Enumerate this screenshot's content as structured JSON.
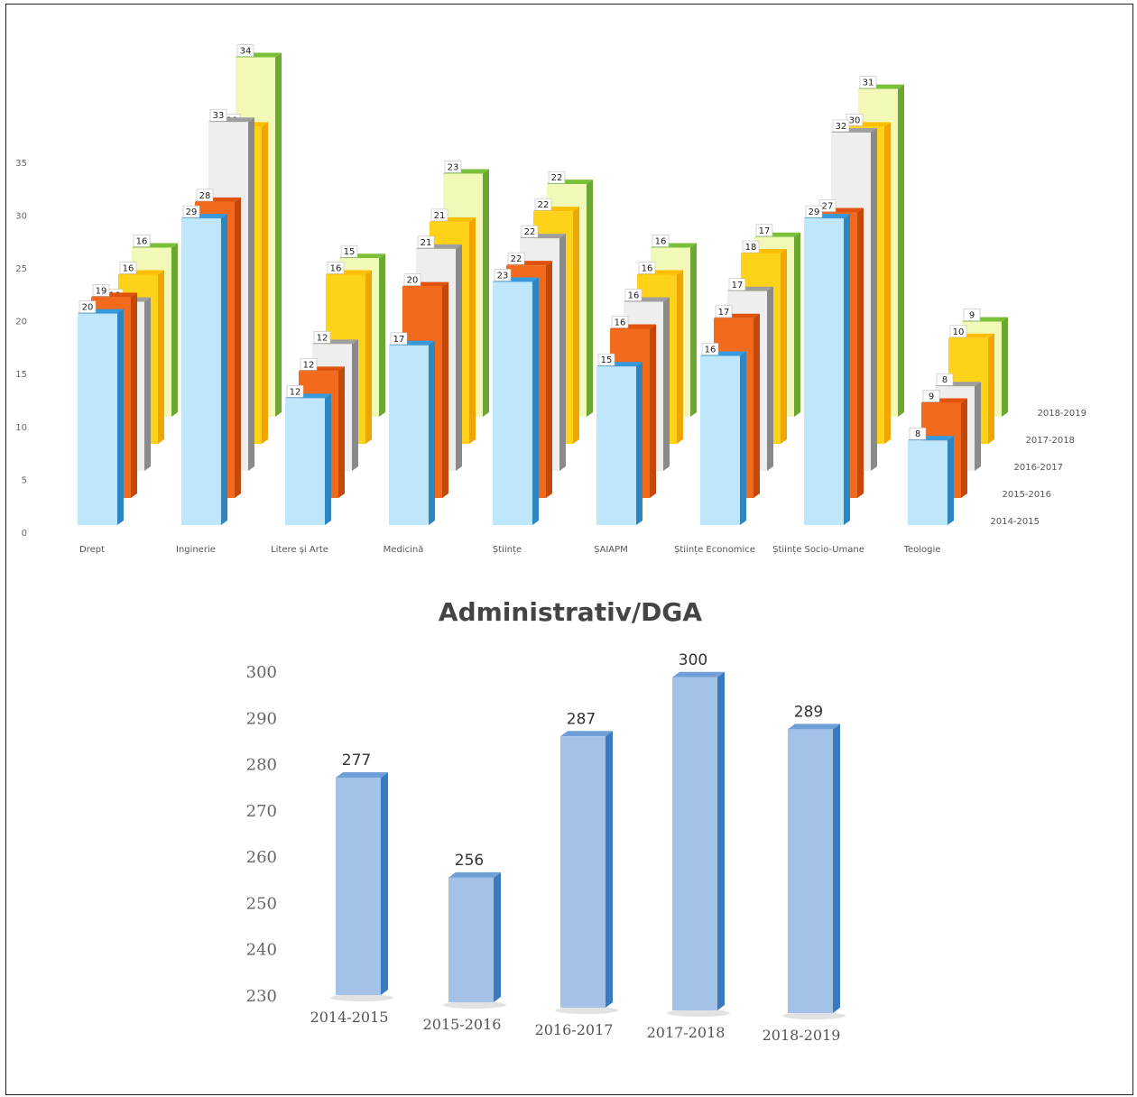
{
  "chart_data": [
    {
      "type": "bar",
      "title": "",
      "xlabel": "",
      "ylabel": "",
      "ylim": [
        0,
        35
      ],
      "yticks": [
        0,
        5,
        10,
        15,
        20,
        25,
        30,
        35
      ],
      "categories": [
        "Drept",
        "Inginerie",
        "Litere și Arte",
        "Medicină",
        "Științe",
        "ȘAIAPM",
        "Științe Economice",
        "Științe Socio-Umane",
        "Teologie"
      ],
      "series": [
        {
          "name": "2014-2015",
          "color": "#bfe7fb",
          "side": "#2e86c1",
          "values": [
            20,
            29,
            12,
            17,
            23,
            15,
            16,
            29,
            8
          ]
        },
        {
          "name": "2015-2016",
          "color": "#f26b1d",
          "side": "#c4480a",
          "values": [
            19,
            28,
            12,
            20,
            22,
            16,
            17,
            27,
            9
          ]
        },
        {
          "name": "2016-2017",
          "color": "#eeeeee",
          "side": "#8a8a8a",
          "values": [
            16,
            33,
            12,
            21,
            22,
            16,
            17,
            32,
            8
          ]
        },
        {
          "name": "2017-2018",
          "color": "#ffd21a",
          "side": "#f0a500",
          "values": [
            16,
            30,
            16,
            21,
            22,
            16,
            18,
            30,
            10
          ]
        },
        {
          "name": "2018-2019",
          "color": "#f2f9b8",
          "side": "#6aa832",
          "values": [
            16,
            34,
            15,
            23,
            22,
            16,
            17,
            31,
            9
          ]
        }
      ],
      "legend": "right, diagonal series axis"
    },
    {
      "type": "bar",
      "title": "Administrativ/DGA",
      "xlabel": "",
      "ylabel": "",
      "ylim": [
        230,
        300
      ],
      "yticks": [
        230,
        240,
        250,
        260,
        270,
        280,
        290,
        300
      ],
      "categories": [
        "2014-2015",
        "2015-2016",
        "2016-2017",
        "2017-2018",
        "2018-2019"
      ],
      "values": [
        277,
        256,
        287,
        300,
        289
      ],
      "color": "#a4c2e8",
      "side": "#3a7bbf"
    }
  ]
}
